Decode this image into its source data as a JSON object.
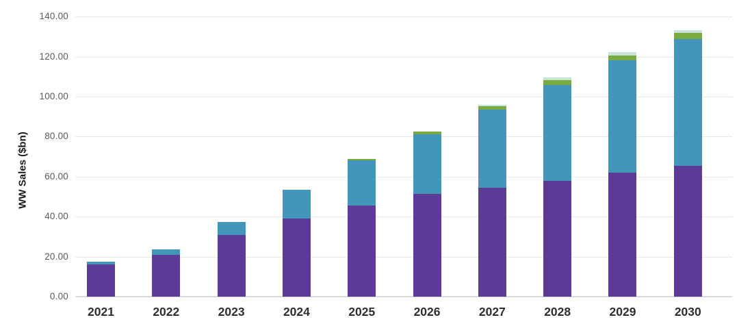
{
  "chart_data": {
    "type": "bar",
    "stacked": true,
    "title": "",
    "xlabel": "",
    "ylabel": "WW Sales ($bn)",
    "ylim": [
      0,
      140
    ],
    "ytick_step": 20,
    "ytick_labels": [
      "0.00",
      "20.00",
      "40.00",
      "60.00",
      "80.00",
      "100.00",
      "120.00",
      "140.00"
    ],
    "grid": "horizontal-only",
    "legend": "none",
    "categories": [
      "2021",
      "2022",
      "2023",
      "2024",
      "2025",
      "2026",
      "2027",
      "2028",
      "2029",
      "2030"
    ],
    "series": [
      {
        "name": "purple-segment",
        "color": "#5d3a97",
        "values": [
          16.2,
          20.8,
          31.0,
          39.0,
          45.5,
          51.5,
          54.4,
          58.0,
          61.9,
          65.3
        ]
      },
      {
        "name": "blue-segment",
        "color": "#4396b8",
        "values": [
          1.4,
          2.9,
          6.4,
          14.5,
          22.8,
          29.8,
          39.2,
          48.0,
          56.2,
          63.5
        ]
      },
      {
        "name": "green-segment",
        "color": "#7baa40",
        "values": [
          0,
          0,
          0,
          0,
          0.4,
          1.2,
          1.8,
          2.3,
          2.6,
          3.2
        ]
      },
      {
        "name": "light-teal-segment",
        "color": "#c8e3dc",
        "values": [
          0,
          0,
          0,
          0,
          0,
          0,
          0.4,
          1.4,
          1.7,
          1.3
        ]
      }
    ],
    "totals": [
      17.6,
      23.7,
      37.4,
      53.5,
      68.7,
      82.5,
      95.8,
      109.7,
      122.4,
      133.3
    ]
  }
}
